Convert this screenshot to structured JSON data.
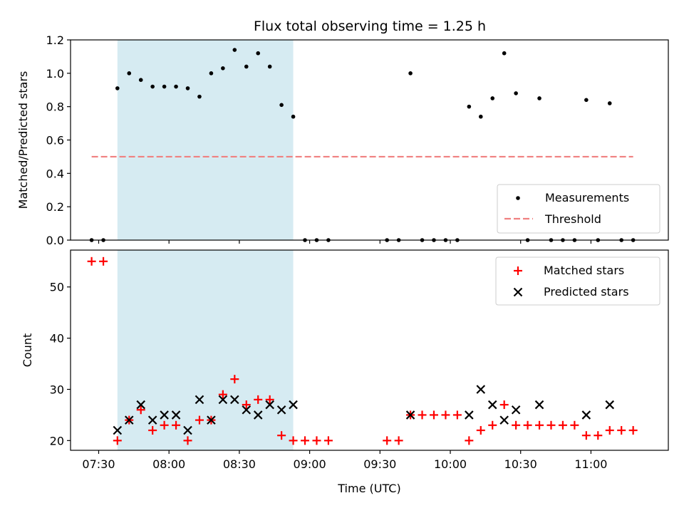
{
  "chart_data": [
    {
      "type": "scatter",
      "title": "Flux total observing time = 1.25 h",
      "xlabel": "",
      "ylabel": "Matched/Predicted stars",
      "ylim": [
        0,
        1.2
      ],
      "yticks": [
        "0.0",
        "0.2",
        "0.4",
        "0.6",
        "0.8",
        "1.0",
        "1.2"
      ],
      "shaded_interval_minutes": [
        458,
        533
      ],
      "threshold": {
        "name": "Threshold",
        "value": 0.5,
        "x_range": [
          447,
          678
        ],
        "color": "#f08080"
      },
      "series": [
        {
          "name": "Measurements",
          "color": "#000000",
          "points": [
            [
              447,
              0
            ],
            [
              452,
              0
            ],
            [
              458,
              0.91
            ],
            [
              463,
              1.0
            ],
            [
              468,
              0.96
            ],
            [
              473,
              0.92
            ],
            [
              478,
              0.92
            ],
            [
              483,
              0.92
            ],
            [
              488,
              0.91
            ],
            [
              493,
              0.86
            ],
            [
              498,
              1.0
            ],
            [
              503,
              1.03
            ],
            [
              508,
              1.14
            ],
            [
              513,
              1.04
            ],
            [
              518,
              1.12
            ],
            [
              523,
              1.04
            ],
            [
              528,
              0.81
            ],
            [
              533,
              0.74
            ],
            [
              538,
              0
            ],
            [
              543,
              0
            ],
            [
              548,
              0
            ],
            [
              573,
              0
            ],
            [
              578,
              0
            ],
            [
              583,
              1.0
            ],
            [
              588,
              0
            ],
            [
              593,
              0
            ],
            [
              598,
              0
            ],
            [
              603,
              0
            ],
            [
              608,
              0.8
            ],
            [
              613,
              0.74
            ],
            [
              618,
              0.85
            ],
            [
              623,
              1.12
            ],
            [
              628,
              0.88
            ],
            [
              633,
              0
            ],
            [
              638,
              0.85
            ],
            [
              643,
              0
            ],
            [
              648,
              0
            ],
            [
              653,
              0
            ],
            [
              658,
              0.84
            ],
            [
              663,
              0
            ],
            [
              668,
              0.82
            ],
            [
              673,
              0
            ],
            [
              678,
              0
            ]
          ]
        }
      ],
      "legend": [
        "Measurements",
        "Threshold"
      ],
      "legend_position": "bottom-right"
    },
    {
      "type": "scatter",
      "title": "",
      "xlabel": "Time (UTC)",
      "ylabel": "Count",
      "ylim": [
        18.1,
        57.2
      ],
      "yticks": [
        "20",
        "30",
        "40",
        "50"
      ],
      "xlim_minutes": [
        438,
        693
      ],
      "xticks": [
        "07:30",
        "08:00",
        "08:30",
        "09:00",
        "09:30",
        "10:00",
        "10:30",
        "11:00"
      ],
      "xtick_minutes": [
        450,
        480,
        510,
        540,
        570,
        600,
        630,
        660
      ],
      "shaded_interval_minutes": [
        458,
        533
      ],
      "series": [
        {
          "name": "Matched stars",
          "marker": "plus",
          "color": "#ff0000",
          "points": [
            [
              447,
              55
            ],
            [
              452,
              55
            ],
            [
              458,
              20
            ],
            [
              463,
              24
            ],
            [
              468,
              26
            ],
            [
              473,
              22
            ],
            [
              478,
              23
            ],
            [
              483,
              23
            ],
            [
              488,
              20
            ],
            [
              493,
              24
            ],
            [
              498,
              24
            ],
            [
              503,
              29
            ],
            [
              508,
              32
            ],
            [
              513,
              27
            ],
            [
              518,
              28
            ],
            [
              523,
              28
            ],
            [
              528,
              21
            ],
            [
              533,
              20
            ],
            [
              538,
              20
            ],
            [
              543,
              20
            ],
            [
              548,
              20
            ],
            [
              573,
              20
            ],
            [
              578,
              20
            ],
            [
              583,
              25
            ],
            [
              588,
              25
            ],
            [
              593,
              25
            ],
            [
              598,
              25
            ],
            [
              603,
              25
            ],
            [
              608,
              20
            ],
            [
              613,
              22
            ],
            [
              618,
              23
            ],
            [
              623,
              27
            ],
            [
              628,
              23
            ],
            [
              633,
              23
            ],
            [
              638,
              23
            ],
            [
              643,
              23
            ],
            [
              648,
              23
            ],
            [
              653,
              23
            ],
            [
              658,
              21
            ],
            [
              663,
              21
            ],
            [
              668,
              22
            ],
            [
              673,
              22
            ],
            [
              678,
              22
            ]
          ]
        },
        {
          "name": "Predicted stars",
          "marker": "x",
          "color": "#000000",
          "points": [
            [
              458,
              22
            ],
            [
              463,
              24
            ],
            [
              468,
              27
            ],
            [
              473,
              24
            ],
            [
              478,
              25
            ],
            [
              483,
              25
            ],
            [
              488,
              22
            ],
            [
              493,
              28
            ],
            [
              498,
              24
            ],
            [
              503,
              28
            ],
            [
              508,
              28
            ],
            [
              513,
              26
            ],
            [
              518,
              25
            ],
            [
              523,
              27
            ],
            [
              528,
              26
            ],
            [
              533,
              27
            ],
            [
              583,
              25
            ],
            [
              608,
              25
            ],
            [
              613,
              30
            ],
            [
              618,
              27
            ],
            [
              623,
              24
            ],
            [
              628,
              26
            ],
            [
              638,
              27
            ],
            [
              658,
              25
            ],
            [
              668,
              27
            ]
          ]
        }
      ],
      "legend": [
        "Matched stars",
        "Predicted stars"
      ],
      "legend_position": "top-right"
    }
  ]
}
